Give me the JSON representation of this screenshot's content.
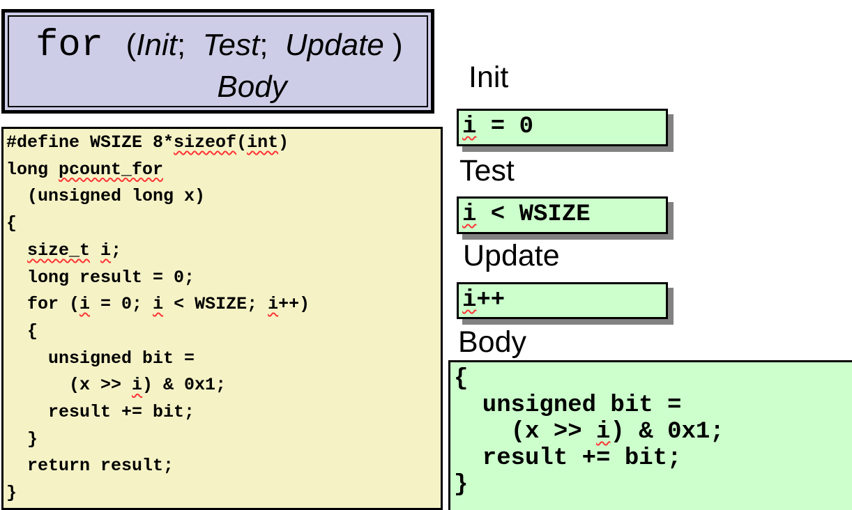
{
  "colors": {
    "lavender": "#cdcde7",
    "yellow": "#f5f2c6",
    "green": "#ccffcc",
    "shadow": "#828282",
    "squiggle": "#ff3333",
    "border": "#000000"
  },
  "for_template": {
    "line1_segments": [
      {
        "t": "for ",
        "f": "mono"
      },
      {
        "t": "(",
        "f": "plain"
      },
      {
        "t": "Init",
        "f": "italic"
      },
      {
        "t": ";  ",
        "f": "plain"
      },
      {
        "t": "Test",
        "f": "italic"
      },
      {
        "t": ";  ",
        "f": "plain"
      },
      {
        "t": "Update",
        "f": "italic"
      },
      {
        "t": " )",
        "f": "plain"
      }
    ],
    "line2": "Body"
  },
  "code_panel": {
    "lines": [
      "#define WSIZE 8*[[sizeof]]([[int]])",
      "long [[pcount_for]]",
      "  (unsigned long x)",
      "{",
      "  [[size_t]] [[i]];",
      "  long result = 0;",
      "  for ([[i]] = 0; [[i]] < WSIZE; [[i]]++)",
      "  {",
      "    unsigned bit =",
      "      (x >> [[i]]) & 0x1;",
      "    result += bit;",
      "  }",
      "  return result;",
      "}"
    ]
  },
  "sections": [
    {
      "label": "Init",
      "code": [
        "[[i]] = 0"
      ]
    },
    {
      "label": "Test",
      "code": [
        "[[i]] < WSIZE"
      ]
    },
    {
      "label": "Update",
      "code": [
        "[[i]]++"
      ]
    },
    {
      "label": "Body",
      "code": [
        "{",
        "  unsigned bit =",
        "    (x >> [[i]]) & 0x1;",
        "  result += bit;",
        "}"
      ]
    }
  ]
}
